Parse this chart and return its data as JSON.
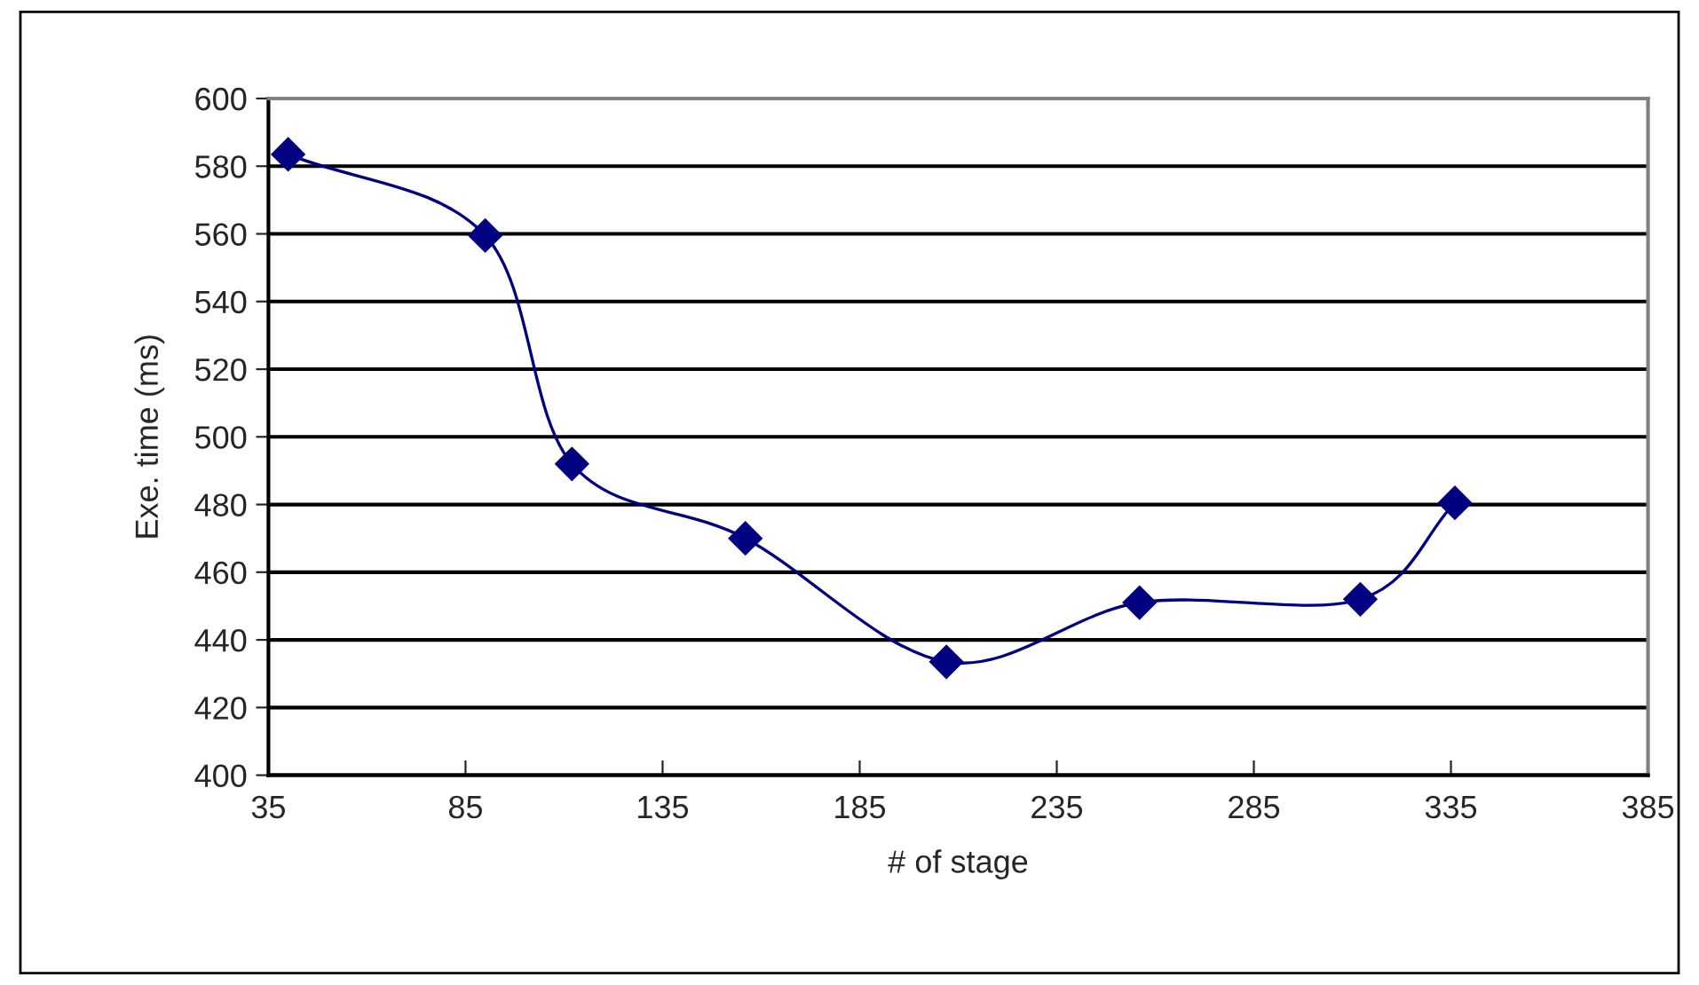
{
  "chart_data": {
    "type": "line",
    "xlabel": "# of stage",
    "ylabel": "Exe. time (ms)",
    "x": [
      40,
      90,
      112,
      156,
      207,
      256,
      312,
      336
    ],
    "series": [
      {
        "color": "#000080",
        "values": [
          583.5,
          559.5,
          492,
          470,
          433.5,
          451,
          452,
          480.5
        ]
      }
    ],
    "xlim": [
      35,
      385
    ],
    "xticks": [
      35,
      85,
      135,
      185,
      235,
      285,
      335,
      385
    ],
    "ylim": [
      400,
      600
    ],
    "yticks": [
      400,
      420,
      440,
      460,
      480,
      500,
      520,
      540,
      560,
      580,
      600
    ],
    "grid": "y",
    "marker": "diamond",
    "line_style": "solid",
    "legend": false
  }
}
